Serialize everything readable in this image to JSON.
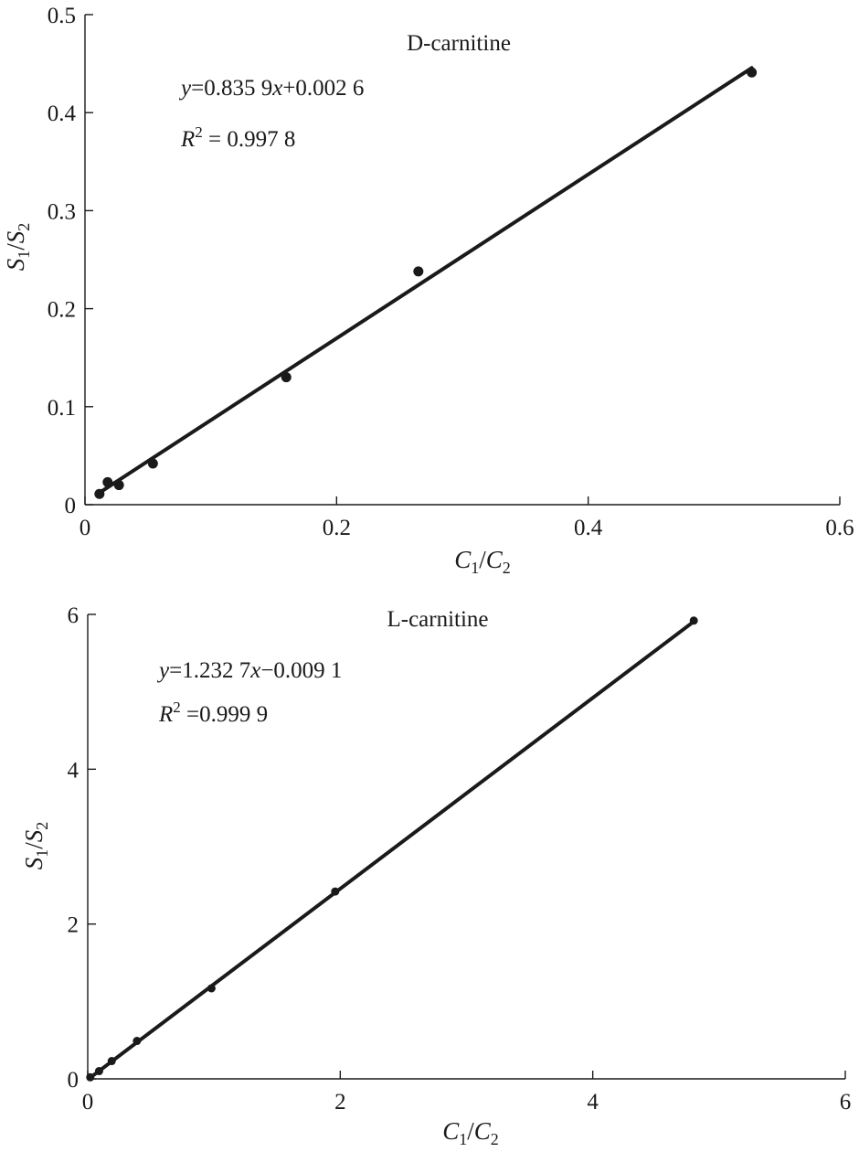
{
  "chart_data": [
    {
      "type": "scatter",
      "title": "D-carnitine",
      "xlabel": {
        "base": "C",
        "sub1": "1",
        "slash": "/",
        "base2": "C",
        "sub2": "2"
      },
      "ylabel": {
        "base": "S",
        "sub1": "1",
        "slash": "/",
        "base2": "S",
        "sub2": "2"
      },
      "xlim": [
        0,
        0.6
      ],
      "ylim": [
        0,
        0.5
      ],
      "xticks": [
        0,
        0.2,
        0.4,
        0.6
      ],
      "xtick_labels": [
        "0",
        "0.2",
        "0.4",
        "0.6"
      ],
      "yticks": [
        0,
        0.1,
        0.2,
        0.3,
        0.4,
        0.5
      ],
      "ytick_labels": [
        "0",
        "0.1",
        "0.2",
        "0.3",
        "0.4",
        "0.5"
      ],
      "equation": {
        "var_y": "y",
        "body": "=0.835 9",
        "var_x": "x",
        "tail": "+0.002 6"
      },
      "r2": {
        "var": "R",
        "sup": "2",
        "value": " = 0.997 8"
      },
      "fit": {
        "slope": 0.8359,
        "intercept": 0.0026,
        "x_range": [
          0.0115,
          0.53
        ]
      },
      "points": [
        {
          "x": 0.0115,
          "y": 0.011
        },
        {
          "x": 0.018,
          "y": 0.023
        },
        {
          "x": 0.027,
          "y": 0.02
        },
        {
          "x": 0.054,
          "y": 0.042
        },
        {
          "x": 0.16,
          "y": 0.13
        },
        {
          "x": 0.265,
          "y": 0.238
        },
        {
          "x": 0.53,
          "y": 0.441
        }
      ]
    },
    {
      "type": "scatter",
      "title": "L-carnitine",
      "xlabel": {
        "base": "C",
        "sub1": "1",
        "slash": "/",
        "base2": "C",
        "sub2": "2"
      },
      "ylabel": {
        "base": "S",
        "sub1": "1",
        "slash": "/",
        "base2": "S",
        "sub2": "2"
      },
      "xlim": [
        0,
        6
      ],
      "ylim": [
        0,
        6
      ],
      "xticks": [
        0,
        2,
        4,
        6
      ],
      "xtick_labels": [
        "0",
        "2",
        "4",
        "6"
      ],
      "yticks": [
        0,
        2,
        4,
        6
      ],
      "ytick_labels": [
        "0",
        "2",
        "4",
        "6"
      ],
      "equation": {
        "var_y": "y",
        "body": "=1.232 7",
        "var_x": "x",
        "tail": "−0.009 1"
      },
      "r2": {
        "var": "R",
        "sup": "2",
        "value": " =0.999 9"
      },
      "fit": {
        "slope": 1.2327,
        "intercept": -0.0091,
        "x_range": [
          0.02,
          4.8
        ]
      },
      "points": [
        {
          "x": 0.02,
          "y": 0.02
        },
        {
          "x": 0.09,
          "y": 0.1
        },
        {
          "x": 0.19,
          "y": 0.23
        },
        {
          "x": 0.39,
          "y": 0.49
        },
        {
          "x": 0.98,
          "y": 1.17
        },
        {
          "x": 1.96,
          "y": 2.42
        },
        {
          "x": 4.8,
          "y": 5.92
        }
      ]
    }
  ]
}
